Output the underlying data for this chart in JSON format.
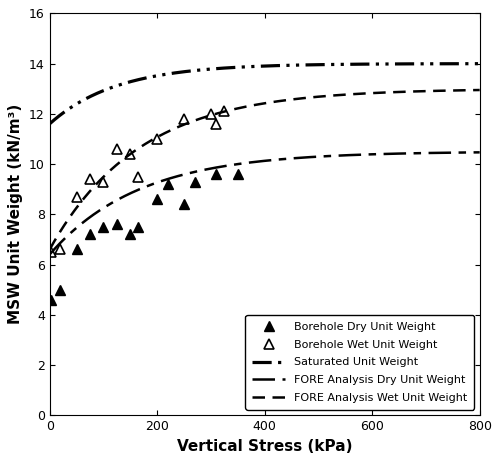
{
  "title": "",
  "xlabel": "Vertical Stress (kPa)",
  "ylabel": "MSW Unit Weight (kN/m³)",
  "xlim": [
    0,
    800
  ],
  "ylim": [
    0,
    16
  ],
  "xticks": [
    0,
    200,
    400,
    600,
    800
  ],
  "yticks": [
    0,
    2,
    4,
    6,
    8,
    10,
    12,
    14,
    16
  ],
  "borehole_dry_x": [
    3,
    20,
    50,
    75,
    100,
    125,
    150,
    165,
    200,
    220,
    250,
    270,
    310,
    350
  ],
  "borehole_dry_y": [
    4.6,
    5.0,
    6.6,
    7.2,
    7.5,
    7.6,
    7.2,
    7.5,
    8.6,
    9.2,
    8.4,
    9.3,
    9.6,
    9.6
  ],
  "borehole_wet_x": [
    3,
    20,
    50,
    75,
    100,
    125,
    150,
    165,
    200,
    250,
    300,
    310,
    325
  ],
  "borehole_wet_y": [
    6.5,
    6.6,
    8.7,
    9.4,
    9.3,
    10.6,
    10.4,
    9.5,
    11.0,
    11.8,
    12.0,
    11.6,
    12.1
  ],
  "fore_dry_params": {
    "gamma_inf": 10.5,
    "gamma_0": 6.4,
    "k": 0.006
  },
  "fore_wet_params": {
    "gamma_inf": 13.0,
    "gamma_0": 6.6,
    "k": 0.006
  },
  "saturated_params": {
    "gamma_inf": 14.0,
    "gamma_0": 11.6,
    "k": 0.008
  },
  "legend_labels": [
    "Borehole Dry Unit Weight",
    "Borehole Wet Unit Weight",
    "Saturated Unit Weight",
    "FORE Analysis Dry Unit Weight",
    "FORE Analysis Wet Unit Weight"
  ],
  "color": "black",
  "line_width": 1.8,
  "marker_size": 7,
  "figwidth": 5.0,
  "figheight": 4.62,
  "dpi": 100
}
